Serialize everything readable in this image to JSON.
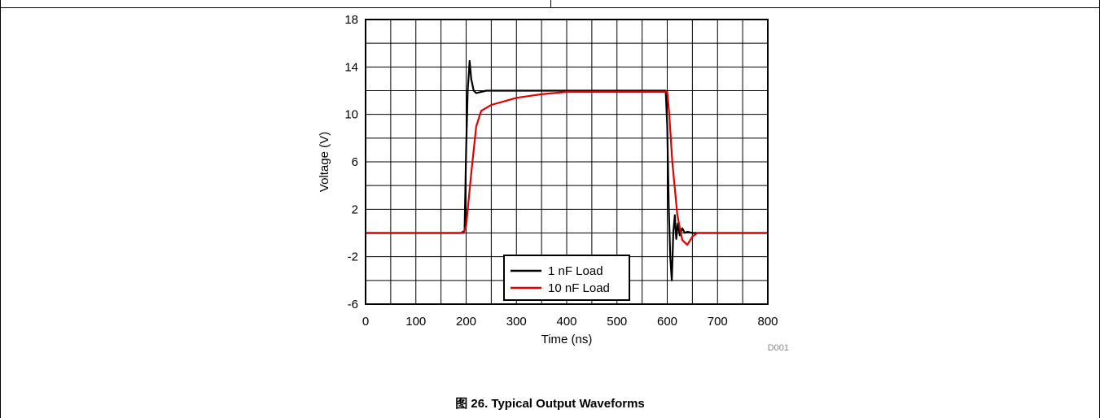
{
  "caption": "图 26. Typical Output Waveforms",
  "chart_data": {
    "type": "line",
    "title": "",
    "xlabel": "Time (ns)",
    "ylabel": "Voltage (V)",
    "xlim": [
      0,
      800
    ],
    "ylim": [
      -6,
      18
    ],
    "xticks": [
      0,
      100,
      200,
      300,
      400,
      500,
      600,
      700,
      800
    ],
    "yticks": [
      -6,
      -2,
      2,
      6,
      10,
      14,
      18
    ],
    "grid": true,
    "legend_position": "bottom-center",
    "figure_code": "D001",
    "series": [
      {
        "name": "1 nF Load",
        "color": "#000000",
        "x": [
          0,
          100,
          190,
          197,
          200,
          203,
          207,
          210,
          215,
          220,
          240,
          300,
          400,
          500,
          597,
          600,
          603,
          606,
          609,
          612,
          615,
          618,
          621,
          625,
          630,
          635,
          640,
          650,
          660,
          700,
          800
        ],
        "y": [
          0,
          0,
          0,
          0.2,
          7,
          12,
          14.5,
          13,
          12,
          11.8,
          12,
          12,
          12,
          12,
          12,
          9,
          2,
          -2,
          -4,
          0,
          1.5,
          -0.5,
          0.8,
          -0.2,
          0.4,
          0,
          0.1,
          0,
          0,
          0,
          0
        ]
      },
      {
        "name": "10 nF Load",
        "color": "#e00000",
        "x": [
          0,
          100,
          195,
          200,
          210,
          220,
          230,
          250,
          300,
          350,
          400,
          500,
          600,
          604,
          610,
          620,
          630,
          640,
          650,
          660,
          670,
          700,
          800
        ],
        "y": [
          0,
          0,
          0,
          0.6,
          5,
          9,
          10.3,
          10.8,
          11.4,
          11.7,
          11.9,
          11.9,
          11.9,
          10,
          6,
          1.5,
          -0.6,
          -1,
          -0.3,
          0,
          0,
          0,
          0
        ]
      }
    ]
  }
}
